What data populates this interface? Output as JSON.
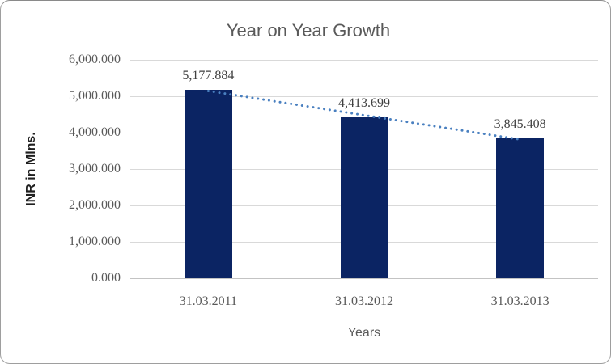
{
  "chart_data": {
    "type": "bar",
    "title": "Year on Year Growth",
    "categories": [
      "31.03.2011",
      "31.03.2012",
      "31.03.2013"
    ],
    "values": [
      5177.884,
      4413.699,
      3845.408
    ],
    "value_labels": [
      "5,177.884",
      "4,413.699",
      "3,845.408"
    ],
    "xlabel": "Years",
    "ylabel": "INR in Mlns.",
    "ylim": [
      0,
      6000
    ],
    "y_tick_interval": 1000,
    "y_tick_labels": [
      "0.000",
      "1,000.000",
      "2,000.000",
      "3,000.000",
      "4,000.000",
      "5,000.000",
      "6,000.000"
    ],
    "grid": true,
    "legend": false,
    "trendline": {
      "type": "linear",
      "style": "dotted",
      "color": "#4a80c0"
    },
    "colors": {
      "bar": "#0b2463",
      "gridline": "#d9d9d9",
      "title_text": "#595959",
      "tick_text": "#595959",
      "data_label_text": "#404040"
    }
  }
}
